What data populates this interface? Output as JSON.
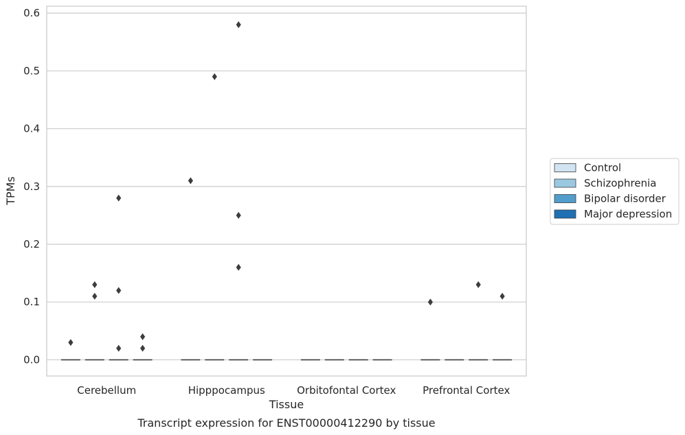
{
  "chart_data": {
    "type": "box",
    "title": "",
    "caption": "Transcript expression for ENST00000412290 by tissue",
    "xlabel": "Tissue",
    "ylabel": "TPMs",
    "ylim": [
      -0.028,
      0.612
    ],
    "yticks": [
      0.0,
      0.1,
      0.2,
      0.3,
      0.4,
      0.5,
      0.6
    ],
    "ytick_labels": [
      "0.0",
      "0.1",
      "0.2",
      "0.3",
      "0.4",
      "0.5",
      "0.6"
    ],
    "grid": true,
    "legend_placement": "right",
    "categories": [
      "Cerebellum",
      "Hipppocampus",
      "Orbitofontal Cortex",
      "Prefrontal Cortex"
    ],
    "series": [
      {
        "name": "Control",
        "color": "#d2e3f2",
        "median": [
          0,
          0,
          0,
          0
        ],
        "outliers": [
          [
            0.03
          ],
          [
            0.31
          ],
          [],
          [
            0.1
          ]
        ]
      },
      {
        "name": "Schizophrenia",
        "color": "#9ac8e0",
        "median": [
          0,
          0,
          0,
          0
        ],
        "outliers": [
          [
            0.13,
            0.11
          ],
          [
            0.49
          ],
          [],
          []
        ]
      },
      {
        "name": "Bipolar disorder",
        "color": "#529dcc",
        "median": [
          0,
          0,
          0,
          0
        ],
        "outliers": [
          [
            0.28,
            0.12,
            0.02
          ],
          [
            0.58,
            0.25,
            0.16
          ],
          [],
          [
            0.13
          ]
        ]
      },
      {
        "name": "Major depression",
        "color": "#2070b4",
        "median": [
          0,
          0,
          0,
          0
        ],
        "outliers": [
          [
            0.04,
            0.02
          ],
          [],
          [],
          [
            0.11
          ]
        ]
      }
    ]
  }
}
